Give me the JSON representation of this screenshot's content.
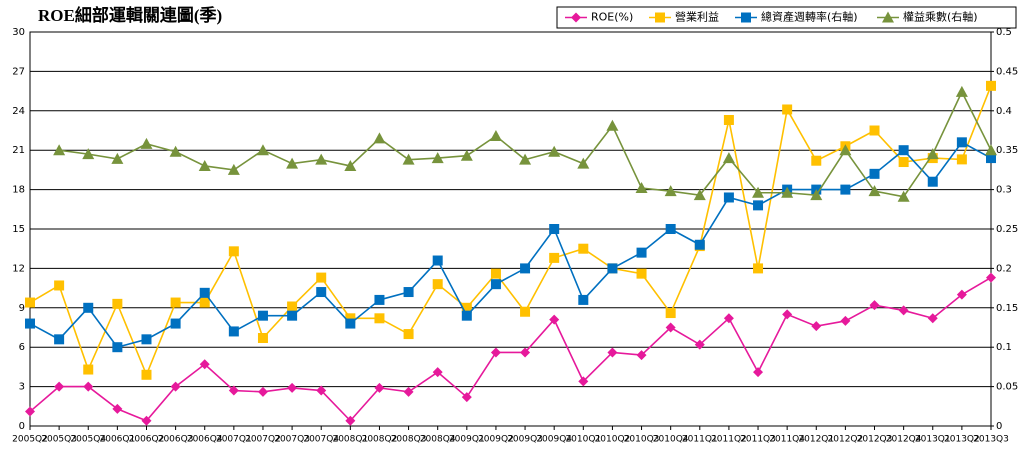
{
  "chart_data": {
    "type": "line",
    "title": "ROE細部運輯關連圖(季)",
    "categories": [
      "2005Q2",
      "2005Q3",
      "2005Q4",
      "2006Q1",
      "2006Q2",
      "2006Q3",
      "2006Q4",
      "2007Q1",
      "2007Q2",
      "2007Q3",
      "2007Q4",
      "2008Q1",
      "2008Q2",
      "2008Q3",
      "2008Q4",
      "2009Q1",
      "2009Q2",
      "2009Q3",
      "2009Q4",
      "2010Q1",
      "2010Q2",
      "2010Q3",
      "2010Q4",
      "2011Q1",
      "2011Q2",
      "2011Q3",
      "2011Q4",
      "2012Q1",
      "2012Q2",
      "2012Q3",
      "2012Q4",
      "2013Q1",
      "2013Q2",
      "2013Q3"
    ],
    "series": [
      {
        "name": "ROE(%)",
        "color": "#e6199b",
        "marker": "diamond",
        "values": [
          1.1,
          3.0,
          3.0,
          1.3,
          0.4,
          3.0,
          4.7,
          2.7,
          2.6,
          2.9,
          2.7,
          0.4,
          2.9,
          2.6,
          4.1,
          2.2,
          5.6,
          5.6,
          8.1,
          3.4,
          5.6,
          5.4,
          7.5,
          6.2,
          8.2,
          4.1,
          8.5,
          7.6,
          8.0,
          9.2,
          8.8,
          8.2,
          10.0,
          11.3
        ]
      },
      {
        "name": "營業利益",
        "color": "#ffc000",
        "marker": "square",
        "values": [
          9.4,
          10.7,
          4.3,
          9.3,
          3.9,
          9.4,
          9.4,
          13.3,
          6.7,
          9.1,
          11.3,
          8.2,
          8.2,
          7.0,
          10.8,
          9.0,
          11.6,
          8.7,
          12.8,
          13.5,
          12.0,
          11.6,
          8.6,
          13.7,
          23.3,
          12.0,
          24.1,
          20.2,
          21.3,
          22.5,
          20.1,
          20.4,
          20.3,
          25.9
        ]
      },
      {
        "name": "總資產週轉率(右軸)",
        "color": "#0070c0",
        "marker": "square",
        "axis": "y2",
        "values": [
          0.13,
          0.11,
          0.15,
          0.1,
          0.11,
          0.13,
          0.169,
          0.12,
          0.14,
          0.14,
          0.17,
          0.13,
          0.16,
          0.17,
          0.21,
          0.14,
          0.18,
          0.2,
          0.25,
          0.16,
          0.2,
          0.22,
          0.25,
          0.23,
          0.29,
          0.28,
          0.3,
          0.3,
          0.3,
          0.32,
          0.35,
          0.31,
          0.36,
          0.34
        ]
      },
      {
        "name": "權益乘數(右軸)",
        "color": "#77933c",
        "marker": "triangle",
        "axis": "y2",
        "values": [
          null,
          0.35,
          0.345,
          0.339,
          0.358,
          0.348,
          0.33,
          0.325,
          0.35,
          0.333,
          0.338,
          0.33,
          0.365,
          0.338,
          0.34,
          0.343,
          0.368,
          0.338,
          0.348,
          0.333,
          0.381,
          0.302,
          0.298,
          0.293,
          0.34,
          0.296,
          0.296,
          0.293,
          0.35,
          0.298,
          0.291,
          0.345,
          0.424,
          0.35
        ]
      }
    ],
    "ylim": [
      0,
      30
    ],
    "yticks": [
      0,
      3,
      6,
      9,
      12,
      15,
      18,
      21,
      24,
      27,
      30
    ],
    "y2lim": [
      0,
      0.5
    ],
    "y2ticks": [
      0,
      0.05,
      0.1,
      0.15,
      0.2,
      0.25,
      0.3,
      0.35,
      0.4,
      0.45,
      0.5
    ],
    "grid": true,
    "legend": "top-right"
  }
}
